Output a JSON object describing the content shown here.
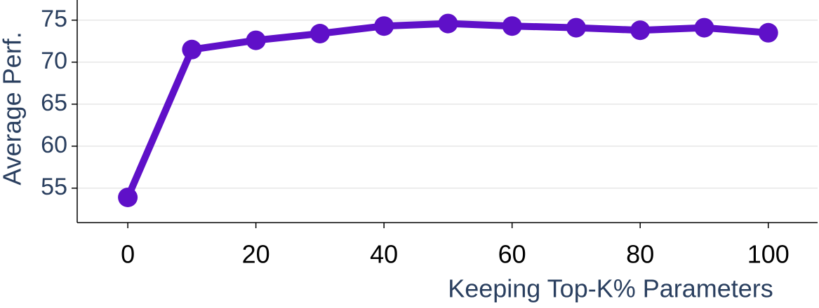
{
  "chart_data": {
    "type": "line",
    "x_label": "Keeping Top-K% Parameters",
    "y_label": "Average Perf.",
    "x": [
      0,
      10,
      20,
      30,
      40,
      50,
      60,
      70,
      80,
      90,
      100
    ],
    "series": [
      {
        "color": "#5f10c8",
        "values": [
          53.9,
          71.5,
          72.6,
          73.4,
          74.3,
          74.6,
          74.3,
          74.1,
          73.8,
          74.1,
          73.5
        ]
      }
    ],
    "xlim": [
      -7.9,
      107.7
    ],
    "xticks": [
      0,
      20,
      40,
      60,
      80,
      100
    ],
    "ylim": [
      50.9,
      77.4
    ],
    "yticks": [
      55,
      60,
      65,
      70,
      75
    ],
    "grid": true
  }
}
